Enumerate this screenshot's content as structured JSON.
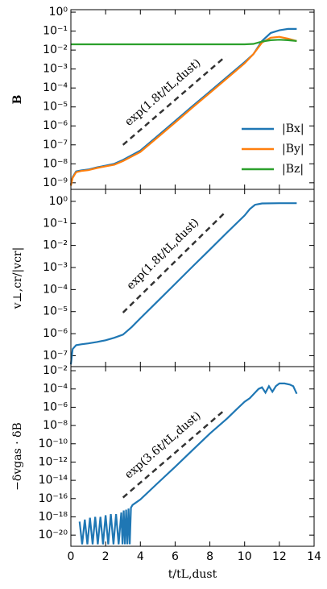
{
  "chart_data": [
    {
      "type": "line",
      "ylabel": "B",
      "log_y": true,
      "legend": "lower right",
      "ylim": [
        4.5e-10,
        1.35
      ],
      "yticks": [
        {
          "value": 1,
          "label": "10⁰"
        },
        {
          "value": 0.1,
          "label": "10⁻¹"
        },
        {
          "value": 0.01,
          "label": "10⁻²"
        },
        {
          "value": 0.001,
          "label": "10⁻³"
        },
        {
          "value": 0.0001,
          "label": "10⁻⁴"
        },
        {
          "value": 1e-05,
          "label": "10⁻⁵"
        },
        {
          "value": 1e-06,
          "label": "10⁻⁶"
        },
        {
          "value": 1e-07,
          "label": "10⁻⁷"
        },
        {
          "value": 1e-08,
          "label": "10⁻⁸"
        },
        {
          "value": 1e-09,
          "label": "10⁻⁹"
        }
      ],
      "annotation": "exp(1.8t/tL,dust)",
      "fit_line": {
        "x": [
          3,
          8.9
        ],
        "values": [
          1e-07,
          0.0046
        ]
      },
      "series": [
        {
          "name": "|Bx|",
          "color": "#1f77b4",
          "x": [
            0,
            0.1,
            0.3,
            0.6,
            1,
            1.5,
            2,
            2.5,
            3,
            4,
            5,
            6,
            7,
            8,
            9,
            10,
            10.5,
            11,
            11.5,
            12,
            12.5,
            13
          ],
          "values": [
            8e-10,
            2e-09,
            4e-09,
            4.5e-09,
            5e-09,
            6.5e-09,
            8e-09,
            1e-08,
            1.6e-08,
            5e-08,
            3e-07,
            1.8e-06,
            1.1e-05,
            6.5e-05,
            0.00039,
            0.0023,
            0.006,
            0.03,
            0.08,
            0.11,
            0.13,
            0.13
          ]
        },
        {
          "name": "|By|",
          "color": "#ff7f0e",
          "x": [
            0,
            0.1,
            0.3,
            0.6,
            1,
            1.5,
            2,
            2.5,
            3,
            4,
            5,
            6,
            7,
            8,
            9,
            10,
            10.5,
            11,
            11.5,
            12,
            12.5,
            13
          ],
          "values": [
            7e-10,
            1.8e-09,
            3.6e-09,
            4.2e-09,
            4.6e-09,
            6e-09,
            7.4e-09,
            9e-09,
            1.4e-08,
            4.2e-08,
            2.5e-07,
            1.5e-06,
            9.4e-06,
            5.5e-05,
            0.00033,
            0.002,
            0.006,
            0.025,
            0.045,
            0.05,
            0.04,
            0.03
          ]
        },
        {
          "name": "|Bz|",
          "color": "#2ca02c",
          "x": [
            0,
            10,
            10.5,
            11,
            11.5,
            12,
            12.5,
            13
          ],
          "values": [
            0.02,
            0.02,
            0.021,
            0.028,
            0.033,
            0.035,
            0.033,
            0.03
          ]
        }
      ]
    },
    {
      "type": "line",
      "ylabel": "v⊥,cr/|vcr|",
      "log_y": true,
      "ylim": [
        3.2e-08,
        3.5
      ],
      "yticks": [
        {
          "value": 1,
          "label": "10⁰"
        },
        {
          "value": 0.1,
          "label": "10⁻¹"
        },
        {
          "value": 0.01,
          "label": "10⁻²"
        },
        {
          "value": 0.001,
          "label": "10⁻³"
        },
        {
          "value": 0.0001,
          "label": "10⁻⁴"
        },
        {
          "value": 1e-05,
          "label": "10⁻⁵"
        },
        {
          "value": 1e-06,
          "label": "10⁻⁶"
        },
        {
          "value": 1e-07,
          "label": "10⁻⁷"
        }
      ],
      "annotation": "exp(1.8t/tL,dust)",
      "fit_line": {
        "x": [
          3,
          8.9
        ],
        "values": [
          9e-06,
          0.33
        ]
      },
      "series": [
        {
          "color": "#1f77b4",
          "x": [
            0,
            0.1,
            0.3,
            0.6,
            1,
            1.5,
            2,
            2.5,
            3,
            3.5,
            4,
            5,
            6,
            7,
            8,
            9,
            10,
            10.3,
            10.6,
            11,
            12,
            13
          ],
          "values": [
            4e-08,
            2e-07,
            3e-07,
            3.3e-07,
            3.6e-07,
            4.2e-07,
            5e-07,
            6.5e-07,
            9e-07,
            2e-06,
            5e-06,
            3e-05,
            0.00018,
            0.0011,
            0.0065,
            0.039,
            0.23,
            0.45,
            0.7,
            0.8,
            0.82,
            0.82
          ]
        }
      ]
    },
    {
      "type": "line",
      "ylabel": "−δvgas · δB",
      "log_y": true,
      "xlabel": "t/tL,dust",
      "xlim": [
        0,
        14
      ],
      "xticks": [
        0,
        2,
        4,
        6,
        8,
        10,
        12,
        14
      ],
      "ylim": [
        6e-22,
        0.028
      ],
      "yticks": [
        {
          "value": 0.01,
          "label": "10⁻²"
        },
        {
          "value": 0.0001,
          "label": "10⁻⁴"
        },
        {
          "value": 1e-06,
          "label": "10⁻⁶"
        },
        {
          "value": 1e-08,
          "label": "10⁻⁸"
        },
        {
          "value": 1e-10,
          "label": "10⁻¹⁰"
        },
        {
          "value": 1e-12,
          "label": "10⁻¹²"
        },
        {
          "value": 1e-14,
          "label": "10⁻¹⁴"
        },
        {
          "value": 1e-16,
          "label": "10⁻¹⁶"
        },
        {
          "value": 1e-18,
          "label": "10⁻¹⁸"
        },
        {
          "value": 1e-20,
          "label": "10⁻²⁰"
        }
      ],
      "annotation": "exp(3.6t/tL,dust)",
      "fit_line": {
        "x": [
          3,
          8.9
        ],
        "values": [
          1.3e-16,
          6e-07
        ]
      },
      "series": [
        {
          "color": "#1f77b4",
          "x": [
            0.5,
            0.65,
            0.8,
            0.95,
            1.1,
            1.25,
            1.4,
            1.55,
            1.7,
            1.85,
            2.0,
            2.15,
            2.3,
            2.45,
            2.6,
            2.75,
            2.9,
            2.97,
            3.04,
            3.11,
            3.18,
            3.25,
            3.32,
            3.39,
            3.46,
            3.55,
            4,
            5,
            6,
            7,
            8,
            9,
            9.5,
            10,
            10.3,
            10.6,
            10.8,
            11,
            11.2,
            11.4,
            11.6,
            11.8,
            12,
            12.3,
            12.6,
            12.8,
            13
          ],
          "values": [
            3e-19,
            1e-21,
            5e-19,
            1e-21,
            8e-19,
            1e-21,
            1e-18,
            1e-21,
            1e-18,
            1e-21,
            1.5e-18,
            1e-21,
            2e-18,
            1e-21,
            2e-18,
            1e-21,
            3e-18,
            1e-21,
            5e-18,
            1e-21,
            6e-18,
            1e-21,
            8e-18,
            1e-21,
            1e-17,
            2e-17,
            8e-17,
            5e-15,
            3e-13,
            2e-11,
            1.3e-09,
            6e-08,
            5e-07,
            4e-06,
            1e-05,
            4e-05,
            0.0001,
            0.00015,
            4e-05,
            0.0002,
            5e-05,
            0.0002,
            0.0004,
            0.0004,
            0.0003,
            0.0002,
            3e-05
          ]
        }
      ]
    }
  ]
}
